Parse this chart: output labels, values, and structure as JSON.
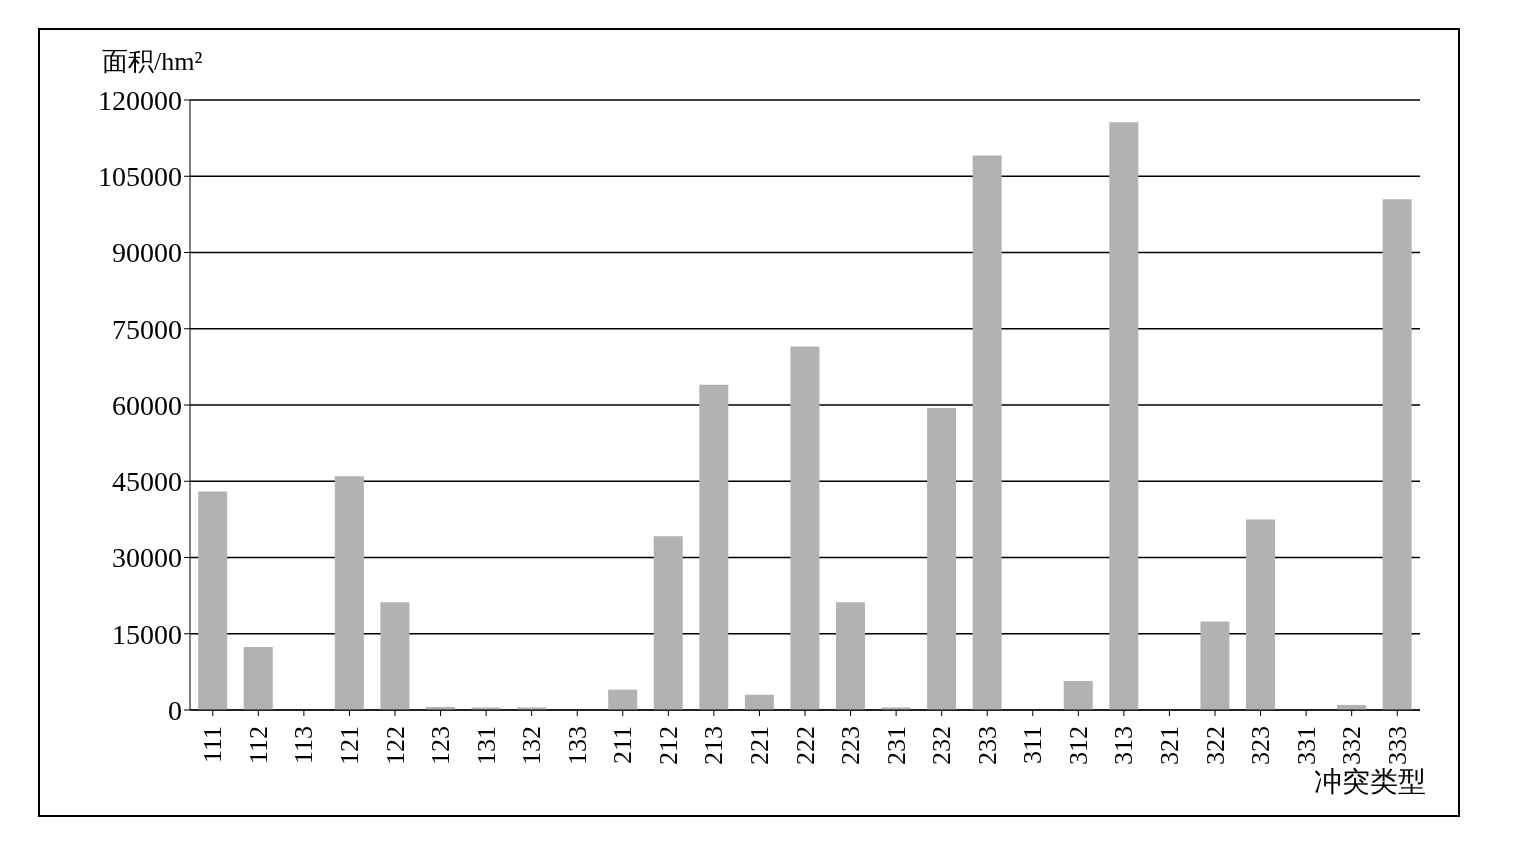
{
  "chart_data": {
    "type": "bar",
    "ylabel": "面积/hm²",
    "xlabel": "冲突类型",
    "categories": [
      "111",
      "112",
      "113",
      "121",
      "122",
      "123",
      "131",
      "132",
      "133",
      "211",
      "212",
      "213",
      "221",
      "222",
      "223",
      "231",
      "232",
      "233",
      "311",
      "312",
      "313",
      "321",
      "322",
      "323",
      "331",
      "332",
      "333"
    ],
    "values": [
      43000,
      12400,
      0,
      46000,
      21200,
      600,
      500,
      500,
      0,
      4000,
      34200,
      64000,
      3000,
      71500,
      21200,
      500,
      59400,
      109100,
      0,
      5700,
      115600,
      0,
      17400,
      37500,
      0,
      1000,
      100500
    ],
    "color": "#b2b2b2",
    "ylim": [
      0,
      120000
    ],
    "yticks": [
      0,
      15000,
      30000,
      45000,
      60000,
      75000,
      90000,
      105000,
      120000
    ],
    "grid": "y",
    "legend": false
  }
}
